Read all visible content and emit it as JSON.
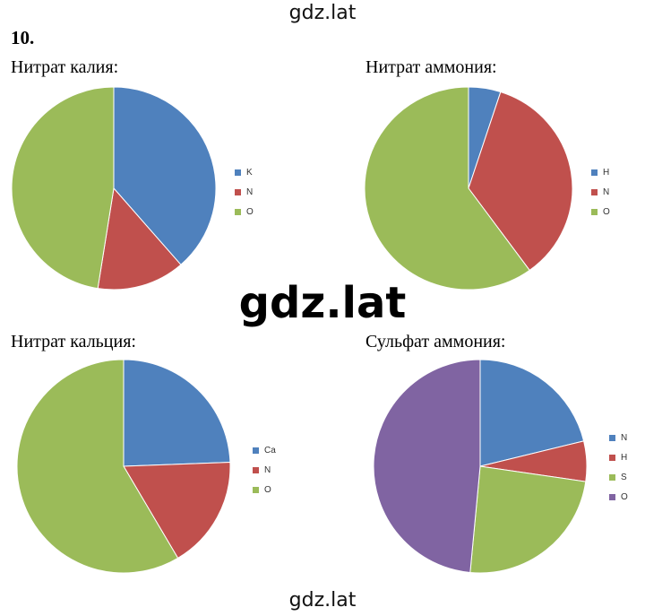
{
  "watermarks": {
    "top": "gdz.lat",
    "middle": "gdz.lat",
    "bottom": "gdz.lat"
  },
  "problem_number": "10.",
  "colors": {
    "blue": "#4F81BD",
    "red": "#C0504D",
    "green": "#9BBB59",
    "purple": "#8064A2"
  },
  "chart_data": [
    {
      "type": "pie",
      "title": "Нитрат калия:",
      "categories": [
        "K",
        "N",
        "O"
      ],
      "values": [
        38.6,
        13.9,
        47.5
      ],
      "colors": [
        "#4F81BD",
        "#C0504D",
        "#9BBB59"
      ],
      "legend": "right"
    },
    {
      "type": "pie",
      "title": "Нитрат аммония:",
      "categories": [
        "H",
        "N",
        "O"
      ],
      "values": [
        5,
        35,
        60
      ],
      "colors": [
        "#4F81BD",
        "#C0504D",
        "#9BBB59"
      ],
      "legend": "right"
    },
    {
      "type": "pie",
      "title": "Нитрат кальция:",
      "categories": [
        "Ca",
        "N",
        "O"
      ],
      "values": [
        24.4,
        17.1,
        58.5
      ],
      "colors": [
        "#4F81BD",
        "#C0504D",
        "#9BBB59"
      ],
      "legend": "right"
    },
    {
      "type": "pie",
      "title": "Сульфат аммония:",
      "categories": [
        "N",
        "H",
        "S",
        "O"
      ],
      "values": [
        21.2,
        6.1,
        24.2,
        48.5
      ],
      "colors": [
        "#4F81BD",
        "#C0504D",
        "#9BBB59",
        "#8064A2"
      ],
      "legend": "right"
    }
  ]
}
